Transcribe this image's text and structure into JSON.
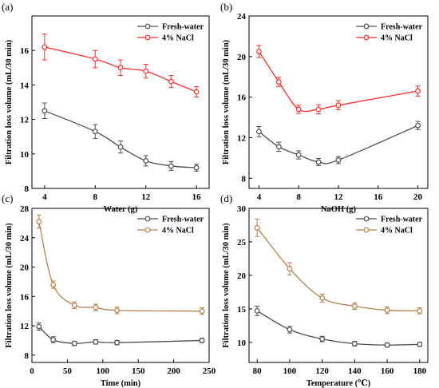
{
  "chart_data": [
    {
      "panel": "(a)",
      "type": "line",
      "xlabel": "Water (g)",
      "ylabel": "Filtration loss volume (mL/30 min)",
      "xlim": [
        3,
        17
      ],
      "ylim": [
        8,
        18
      ],
      "xticks": [
        4,
        8,
        12,
        16
      ],
      "yticks": [
        8,
        10,
        12,
        14,
        16
      ],
      "legend_position": "top-right",
      "series": [
        {
          "name": "Fresh-water",
          "color": "#4d4d4d",
          "points": [
            [
              4,
              12.5
            ],
            [
              8,
              11.3
            ],
            [
              10,
              10.4
            ],
            [
              12,
              9.6
            ],
            [
              14,
              9.3
            ],
            [
              16,
              9.2
            ]
          ],
          "errors": [
            0.45,
            0.4,
            0.35,
            0.3,
            0.25,
            0.2
          ]
        },
        {
          "name": "4% NaCl",
          "color": "#ff2a2a",
          "points": [
            [
              4,
              16.2
            ],
            [
              8,
              15.5
            ],
            [
              10,
              15.0
            ],
            [
              12,
              14.8
            ],
            [
              14,
              14.2
            ],
            [
              16,
              13.6
            ]
          ],
          "errors": [
            0.75,
            0.5,
            0.45,
            0.4,
            0.35,
            0.3
          ]
        }
      ]
    },
    {
      "panel": "(b)",
      "type": "line",
      "xlabel": "NaOH  (g)",
      "ylabel": "Filtration loss volume (mL/30 min)",
      "xlim": [
        3,
        21
      ],
      "ylim": [
        7,
        24
      ],
      "xticks": [
        4,
        8,
        12,
        16,
        20
      ],
      "yticks": [
        8,
        12,
        16,
        20,
        24
      ],
      "legend_position": "top-right",
      "series": [
        {
          "name": "Fresh-water",
          "color": "#4d4d4d",
          "points": [
            [
              4,
              12.6
            ],
            [
              6,
              11.1
            ],
            [
              8,
              10.3
            ],
            [
              10,
              9.6
            ],
            [
              12,
              9.8
            ],
            [
              20,
              13.2
            ]
          ],
          "errors": [
            0.5,
            0.45,
            0.4,
            0.35,
            0.35,
            0.4
          ]
        },
        {
          "name": "4% NaCl",
          "color": "#ff2a2a",
          "points": [
            [
              4,
              20.5
            ],
            [
              6,
              17.5
            ],
            [
              8,
              14.8
            ],
            [
              10,
              14.8
            ],
            [
              12,
              15.2
            ],
            [
              20,
              16.6
            ]
          ],
          "errors": [
            0.6,
            0.45,
            0.4,
            0.45,
            0.45,
            0.5
          ]
        }
      ]
    },
    {
      "panel": "(c)",
      "type": "line",
      "xlabel": "Time (min)",
      "ylabel": "Filtration loss volume (mL/30 min)",
      "xlim": [
        0,
        250
      ],
      "ylim": [
        7,
        28
      ],
      "xticks": [
        0,
        50,
        100,
        150,
        200,
        250
      ],
      "yticks": [
        8,
        12,
        16,
        20,
        24,
        28
      ],
      "legend_position": "top-right",
      "series": [
        {
          "name": "Fresh-water",
          "color": "#4d4d4d",
          "points": [
            [
              10,
              11.9
            ],
            [
              30,
              10.1
            ],
            [
              60,
              9.6
            ],
            [
              90,
              9.8
            ],
            [
              120,
              9.7
            ],
            [
              240,
              10.0
            ]
          ],
          "errors": [
            0.5,
            0.4,
            0.3,
            0.3,
            0.3,
            0.3
          ]
        },
        {
          "name": "4% NaCl",
          "color": "#b5804a",
          "points": [
            [
              10,
              26.2
            ],
            [
              30,
              17.6
            ],
            [
              60,
              14.8
            ],
            [
              90,
              14.5
            ],
            [
              120,
              14.1
            ],
            [
              240,
              14.0
            ]
          ],
          "errors": [
            0.9,
            0.5,
            0.45,
            0.45,
            0.45,
            0.45
          ]
        }
      ]
    },
    {
      "panel": "(d)",
      "type": "line",
      "xlabel": "Temperature (℃)",
      "ylabel": "Filtration loss volume (mL/30 min)",
      "xlim": [
        75,
        185
      ],
      "ylim": [
        7,
        30
      ],
      "xticks": [
        80,
        100,
        120,
        140,
        160,
        180
      ],
      "yticks": [
        10,
        15,
        20,
        25,
        30
      ],
      "legend_position": "top-right",
      "series": [
        {
          "name": "Fresh-water",
          "color": "#4d4d4d",
          "points": [
            [
              80,
              14.7
            ],
            [
              100,
              11.9
            ],
            [
              120,
              10.5
            ],
            [
              140,
              9.8
            ],
            [
              160,
              9.6
            ],
            [
              180,
              9.7
            ]
          ],
          "errors": [
            0.7,
            0.5,
            0.4,
            0.35,
            0.3,
            0.3
          ]
        },
        {
          "name": "4% NaCl",
          "color": "#b5804a",
          "points": [
            [
              80,
              27.1
            ],
            [
              100,
              21.0
            ],
            [
              120,
              16.6
            ],
            [
              140,
              15.4
            ],
            [
              160,
              14.8
            ],
            [
              180,
              14.7
            ]
          ],
          "errors": [
            1.3,
            0.9,
            0.6,
            0.5,
            0.5,
            0.45
          ]
        }
      ]
    }
  ]
}
